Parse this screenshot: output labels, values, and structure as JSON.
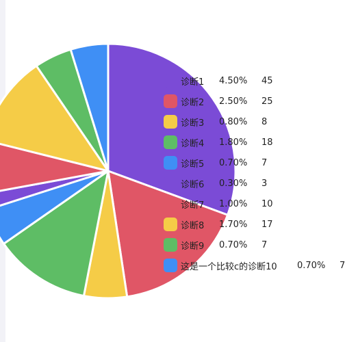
{
  "chart_data": {
    "type": "pie",
    "slices": [
      {
        "name": "诊断1",
        "percent": "4.50%",
        "value": 45,
        "color": "#7b4bd6"
      },
      {
        "name": "诊断2",
        "percent": "2.50%",
        "value": 25,
        "color": "#e05666"
      },
      {
        "name": "诊断3",
        "percent": "0.80%",
        "value": 8,
        "color": "#f5cc47"
      },
      {
        "name": "诊断4",
        "percent": "1.80%",
        "value": 18,
        "color": "#5ebd65"
      },
      {
        "name": "诊断5",
        "percent": "0.70%",
        "value": 7,
        "color": "#3f8ff5"
      },
      {
        "name": "诊断6",
        "percent": "0.30%",
        "value": 3,
        "color": "#7b4bd6"
      },
      {
        "name": "诊断7",
        "percent": "1.00%",
        "value": 10,
        "color": "#e05666"
      },
      {
        "name": "诊断8",
        "percent": "1.70%",
        "value": 17,
        "color": "#f5cc47"
      },
      {
        "name": "诊断9",
        "percent": "0.70%",
        "value": 7,
        "color": "#5ebd65"
      },
      {
        "name": "这是一个比较c的诊断10",
        "percent": "0.70%",
        "value": 7,
        "color": "#3f8ff5"
      }
    ],
    "start_angle_deg": 0,
    "direction": "counterclockwise",
    "legend_position": "right",
    "exploded": true
  }
}
